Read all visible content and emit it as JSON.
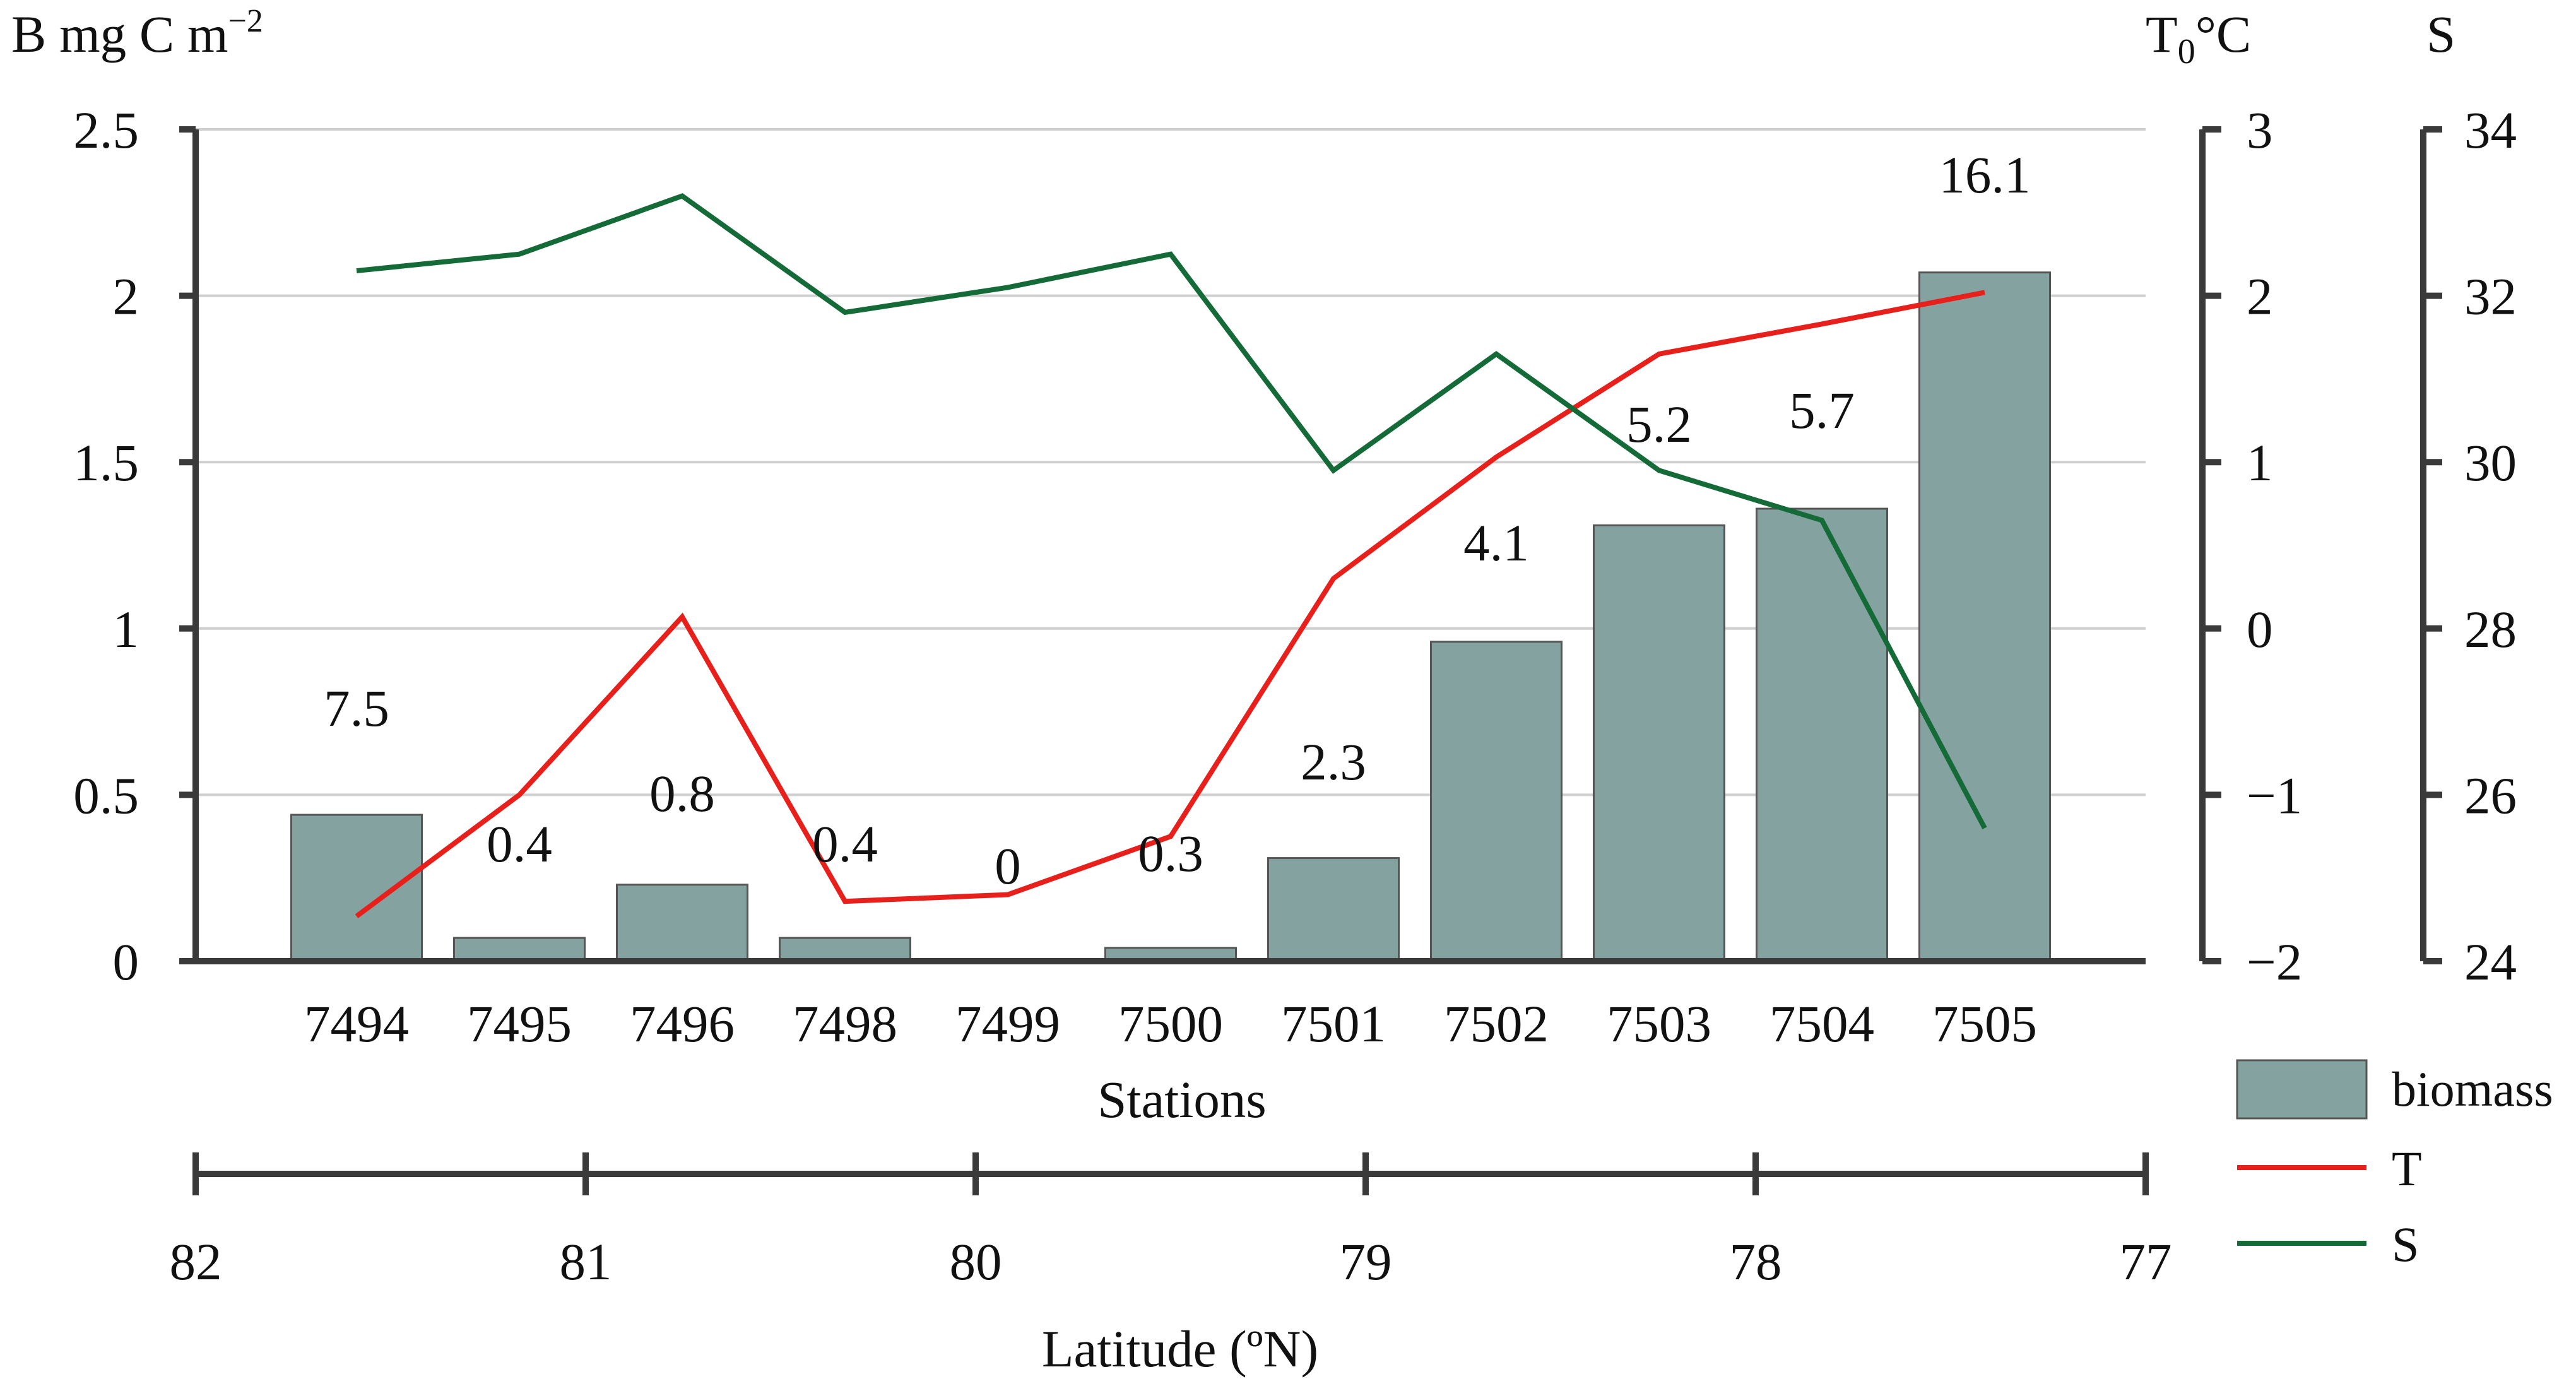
{
  "chart_data": {
    "type": "bar",
    "xlabel": "Stations",
    "categories": [
      "7494",
      "7495",
      "7496",
      "7498",
      "7499",
      "7500",
      "7501",
      "7502",
      "7503",
      "7504",
      "7505"
    ],
    "series": [
      {
        "name": "biomass",
        "axis": "left",
        "kind": "bar",
        "color": "#84a3a0",
        "values": [
          0.44,
          0.07,
          0.23,
          0.07,
          0,
          0.04,
          0.31,
          0.96,
          1.31,
          1.36,
          2.07
        ],
        "labels": [
          "7.5",
          "0.4",
          "0.8",
          "0.4",
          "0",
          "0.3",
          "2.3",
          "4.1",
          "5.2",
          "5.7",
          "16.1"
        ]
      },
      {
        "name": "T",
        "axis": "right1",
        "kind": "line",
        "color": "#e8201c",
        "values": [
          -1.73,
          -1.0,
          0.07,
          -1.64,
          -1.6,
          -1.25,
          0.3,
          1.03,
          1.65,
          1.83,
          2.02
        ]
      },
      {
        "name": "S",
        "axis": "right2",
        "kind": "line",
        "color": "#146b37",
        "values": [
          32.3,
          32.5,
          33.2,
          31.8,
          32.1,
          32.5,
          29.9,
          31.3,
          29.9,
          29.3,
          25.6
        ]
      }
    ],
    "y_left": {
      "label": "B mg C m",
      "label_sup": "−2",
      "ylim": [
        0,
        2.5
      ],
      "ticks": [
        0,
        0.5,
        1,
        1.5,
        2,
        2.5
      ],
      "tick_labels": [
        "0",
        "0.5",
        "1",
        "1.5",
        "2",
        "2.5"
      ]
    },
    "y_right1": {
      "label": "T",
      "label_sub": "0",
      "label_unit": "°C",
      "ylim": [
        -2,
        3
      ],
      "ticks": [
        -2,
        -1,
        0,
        1,
        2,
        3
      ],
      "tick_labels": [
        "−2",
        "−1",
        "0",
        "1",
        "2",
        "3"
      ]
    },
    "y_right2": {
      "label": "S",
      "ylim": [
        24,
        34
      ],
      "ticks": [
        24,
        26,
        28,
        30,
        32,
        34
      ],
      "tick_labels": [
        "24",
        "26",
        "28",
        "30",
        "32",
        "34"
      ]
    },
    "latitude_axis": {
      "label": "Latitude (ºN)",
      "range": [
        82,
        77
      ],
      "ticks": [
        82,
        81,
        80,
        79,
        78,
        77
      ],
      "tick_labels": [
        "82",
        "81",
        "80",
        "79",
        "78",
        "77"
      ]
    },
    "legend": [
      "biomass",
      "T",
      "S"
    ],
    "legend_position": "bottom-right",
    "grid": true
  }
}
